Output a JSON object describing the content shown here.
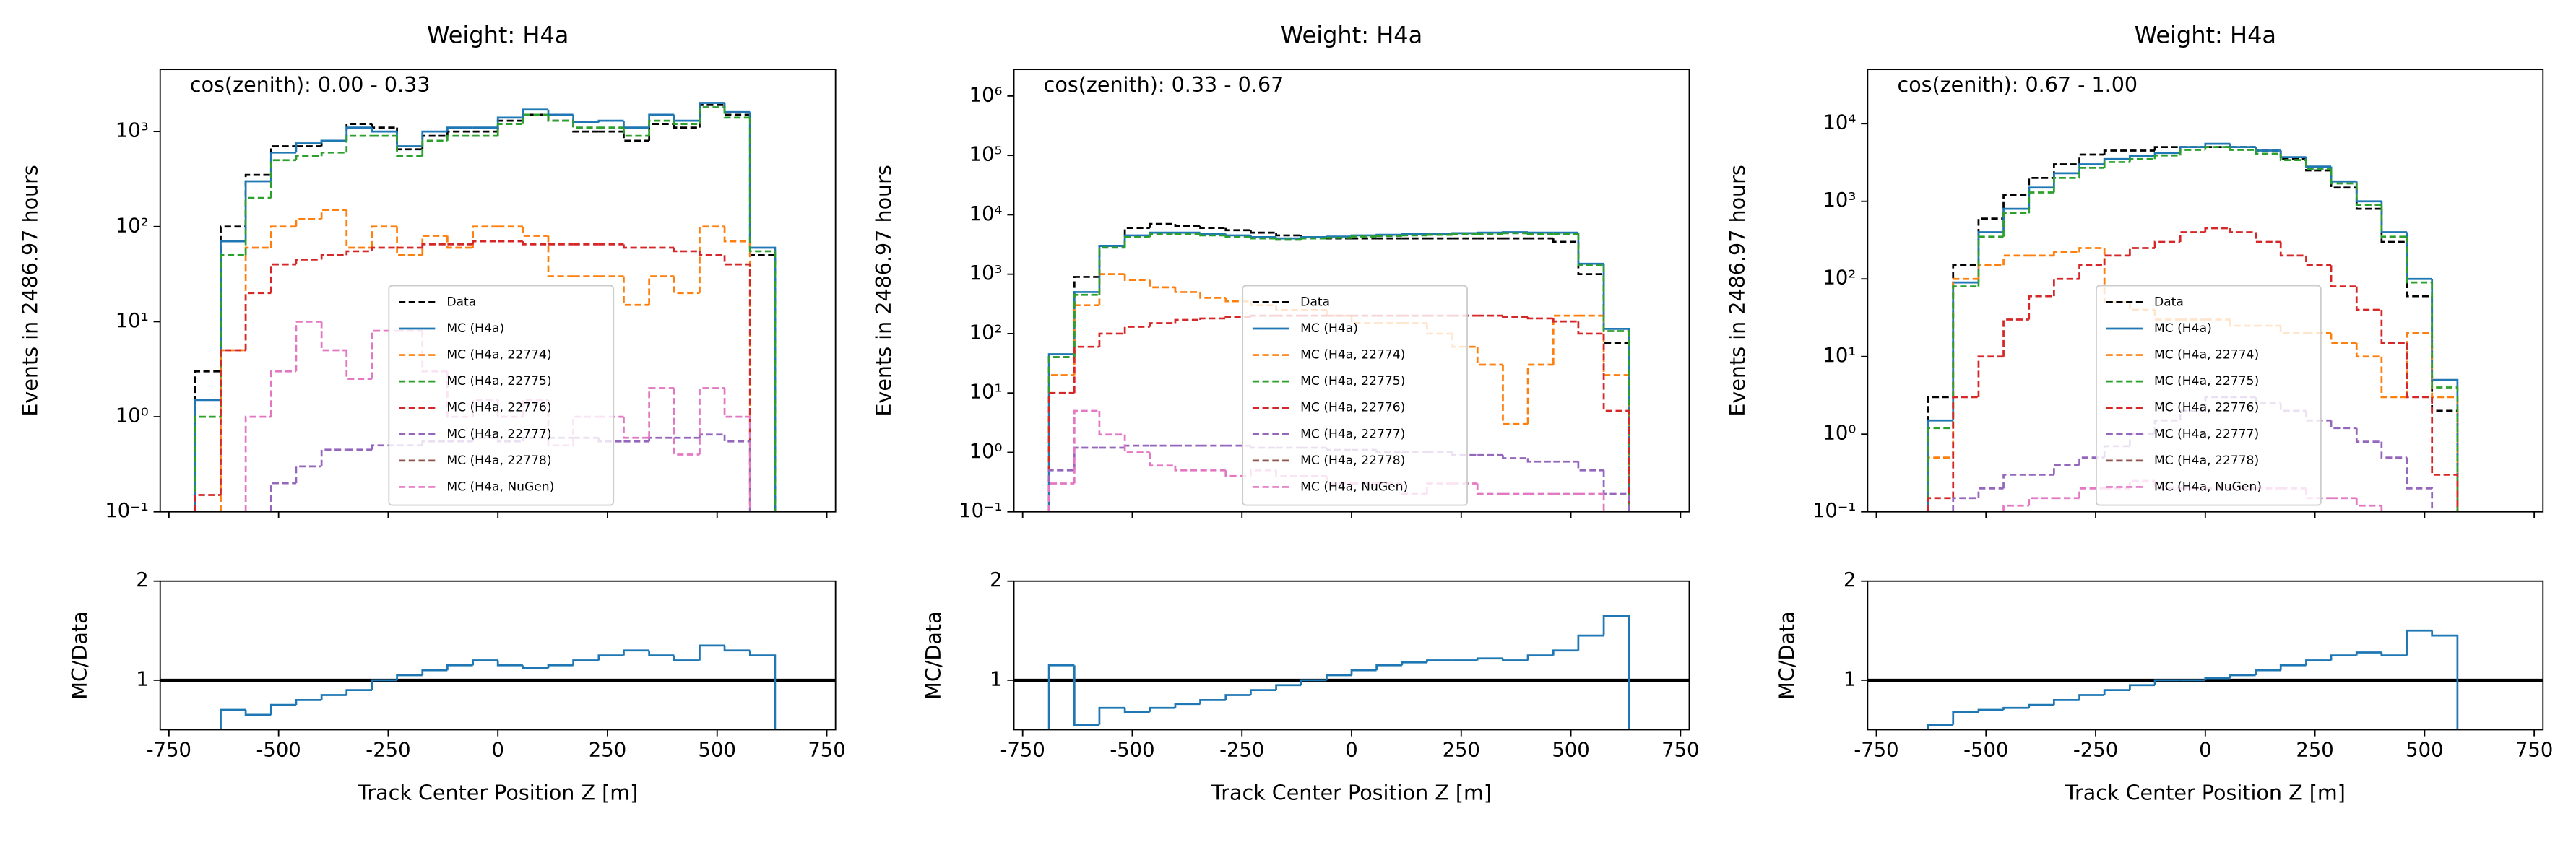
{
  "chart_data": [
    {
      "type": "histogram",
      "title": "Weight: H4a",
      "annotation": "cos(zenith): 0.00 - 0.33",
      "ylabel": "Events in 2486.97 hours",
      "log": true,
      "legend": "lower center",
      "bins": [
        -690,
        -632,
        -575,
        -517,
        -460,
        -402,
        -345,
        -287,
        -230,
        -172,
        -115,
        -57,
        0,
        57,
        115,
        172,
        230,
        287,
        345,
        402,
        460,
        517,
        575,
        632
      ],
      "xlim": [
        -770,
        770
      ],
      "xticks": [
        -750,
        -500,
        -250,
        0,
        250,
        500,
        750
      ],
      "ylim": [
        0.1,
        4500
      ],
      "yticks": [
        {
          "value": 0.1,
          "label": "10⁻¹"
        },
        {
          "value": 1,
          "label": "10⁰"
        },
        {
          "value": 10,
          "label": "10¹"
        },
        {
          "value": 100,
          "label": "10²"
        },
        {
          "value": 1000,
          "label": "10³"
        }
      ],
      "series": [
        {
          "name": "Data",
          "color": "#000000",
          "linestyle": "dashed",
          "values": [
            3,
            100,
            350,
            700,
            700,
            800,
            1200,
            1100,
            650,
            900,
            1000,
            1000,
            1300,
            1500,
            1300,
            1000,
            1000,
            800,
            1200,
            1100,
            1900,
            1500,
            50
          ]
        },
        {
          "name": "MC (H4a)",
          "color": "#1f77b4",
          "linestyle": "solid",
          "values": [
            1.5,
            70,
            300,
            600,
            750,
            800,
            1100,
            1000,
            700,
            1000,
            1100,
            1100,
            1400,
            1700,
            1500,
            1250,
            1300,
            1100,
            1500,
            1300,
            2000,
            1600,
            60
          ]
        },
        {
          "name": "MC (H4a, 22774)",
          "color": "#ff7f0e",
          "linestyle": "dashed",
          "values": [
            null,
            5,
            60,
            100,
            120,
            150,
            60,
            100,
            50,
            80,
            60,
            100,
            100,
            80,
            30,
            30,
            30,
            15,
            30,
            20,
            100,
            70,
            null
          ]
        },
        {
          "name": "MC (H4a, 22775)",
          "color": "#2ca02c",
          "linestyle": "dashed",
          "values": [
            1,
            50,
            200,
            500,
            550,
            600,
            900,
            900,
            550,
            800,
            900,
            900,
            1200,
            1500,
            1300,
            1100,
            1100,
            900,
            1300,
            1200,
            1800,
            1400,
            55
          ]
        },
        {
          "name": "MC (H4a, 22776)",
          "color": "#d62728",
          "linestyle": "dashed",
          "values": [
            0.15,
            5,
            20,
            40,
            45,
            50,
            55,
            60,
            60,
            65,
            65,
            70,
            70,
            65,
            65,
            65,
            65,
            60,
            60,
            55,
            50,
            40,
            null
          ]
        },
        {
          "name": "MC (H4a, 22777)",
          "color": "#9467bd",
          "linestyle": "dashed",
          "values": [
            null,
            null,
            null,
            0.2,
            0.3,
            0.45,
            0.45,
            0.5,
            0.5,
            0.55,
            0.55,
            0.6,
            0.55,
            0.6,
            0.6,
            0.6,
            0.55,
            0.55,
            0.6,
            0.6,
            0.65,
            0.55,
            null
          ]
        },
        {
          "name": "MC (H4a, 22778)",
          "color": "#8c564b",
          "linestyle": "dashed",
          "values": [
            null,
            null,
            null,
            null,
            null,
            null,
            null,
            null,
            null,
            null,
            null,
            null,
            null,
            null,
            null,
            null,
            null,
            null,
            null,
            null,
            null,
            null,
            null
          ]
        },
        {
          "name": "MC (H4a, NuGen)",
          "color": "#e377c2",
          "linestyle": "dashed",
          "values": [
            null,
            null,
            1,
            3,
            10,
            5,
            2.5,
            8,
            8,
            3,
            1,
            1.5,
            1,
            1.5,
            0.5,
            1,
            1,
            0.6,
            2,
            0.4,
            2,
            1,
            null
          ]
        }
      ],
      "ratio": {
        "ylabel": "MC/Data",
        "xlabel": "Track Center Position Z [m]",
        "ylim": [
          0.5,
          2
        ],
        "yticks": [
          1,
          2
        ],
        "ref_line": 1,
        "series": [
          {
            "color": "#1f77b4",
            "values": [
              0.5,
              0.7,
              0.65,
              0.75,
              0.8,
              0.85,
              0.9,
              1.0,
              1.05,
              1.1,
              1.15,
              1.2,
              1.15,
              1.12,
              1.15,
              1.2,
              1.25,
              1.3,
              1.25,
              1.2,
              1.35,
              1.3,
              1.25
            ]
          }
        ]
      }
    },
    {
      "type": "histogram",
      "title": "Weight: H4a",
      "annotation": "cos(zenith): 0.33 - 0.67",
      "ylabel": "Events in 2486.97 hours",
      "log": true,
      "legend": "lower center",
      "bins": [
        -690,
        -632,
        -575,
        -517,
        -460,
        -402,
        -345,
        -287,
        -230,
        -172,
        -115,
        -57,
        0,
        57,
        115,
        172,
        230,
        287,
        345,
        402,
        460,
        517,
        575,
        632
      ],
      "xlim": [
        -770,
        770
      ],
      "xticks": [
        -750,
        -500,
        -250,
        0,
        250,
        500,
        750
      ],
      "ylim": [
        0.1,
        2800000
      ],
      "yticks": [
        {
          "value": 0.1,
          "label": "10⁻¹"
        },
        {
          "value": 1,
          "label": "10⁰"
        },
        {
          "value": 10,
          "label": "10¹"
        },
        {
          "value": 100,
          "label": "10²"
        },
        {
          "value": 1000,
          "label": "10³"
        },
        {
          "value": 10000,
          "label": "10⁴"
        },
        {
          "value": 100000,
          "label": "10⁵"
        },
        {
          "value": 1000000,
          "label": "10⁶"
        }
      ],
      "series": [
        {
          "name": "Data",
          "color": "#000000",
          "linestyle": "dashed",
          "values": [
            40,
            900,
            3000,
            6000,
            7000,
            6500,
            6000,
            5500,
            5000,
            4500,
            4200,
            4000,
            4000,
            4000,
            4000,
            4000,
            4000,
            4000,
            4000,
            4000,
            3500,
            1000,
            70
          ]
        },
        {
          "name": "MC (H4a)",
          "color": "#1f77b4",
          "linestyle": "solid",
          "values": [
            45,
            500,
            3000,
            4500,
            5000,
            5000,
            4800,
            4500,
            4200,
            4000,
            4200,
            4300,
            4500,
            4600,
            4700,
            4800,
            4900,
            5000,
            5100,
            5000,
            5000,
            1500,
            120
          ]
        },
        {
          "name": "MC (H4a, 22774)",
          "color": "#ff7f0e",
          "linestyle": "dashed",
          "values": [
            20,
            300,
            1000,
            800,
            600,
            500,
            400,
            350,
            300,
            250,
            250,
            200,
            150,
            150,
            150,
            100,
            60,
            30,
            3,
            30,
            200,
            200,
            20
          ]
        },
        {
          "name": "MC (H4a, 22775)",
          "color": "#2ca02c",
          "linestyle": "dashed",
          "values": [
            40,
            450,
            2800,
            4200,
            4800,
            4700,
            4500,
            4200,
            4000,
            3800,
            4000,
            4100,
            4300,
            4400,
            4500,
            4600,
            4700,
            4800,
            4900,
            4800,
            4800,
            1400,
            110
          ]
        },
        {
          "name": "MC (H4a, 22776)",
          "color": "#d62728",
          "linestyle": "dashed",
          "values": [
            10,
            60,
            100,
            130,
            150,
            170,
            180,
            190,
            200,
            200,
            200,
            200,
            200,
            200,
            200,
            200,
            200,
            200,
            190,
            180,
            160,
            100,
            5
          ]
        },
        {
          "name": "MC (H4a, 22777)",
          "color": "#9467bd",
          "linestyle": "dashed",
          "values": [
            0.5,
            1.2,
            1.2,
            1.3,
            1.3,
            1.3,
            1.3,
            1.3,
            1.2,
            1.2,
            1.2,
            1.1,
            1.1,
            1,
            1,
            1,
            0.9,
            0.9,
            0.8,
            0.7,
            0.7,
            0.5,
            0.2
          ]
        },
        {
          "name": "MC (H4a, 22778)",
          "color": "#8c564b",
          "linestyle": "dashed",
          "values": [
            null,
            null,
            null,
            null,
            null,
            null,
            null,
            null,
            null,
            null,
            null,
            null,
            null,
            null,
            null,
            null,
            null,
            null,
            null,
            null,
            null,
            null,
            null
          ]
        },
        {
          "name": "MC (H4a, NuGen)",
          "color": "#e377c2",
          "linestyle": "dashed",
          "values": [
            0.3,
            5,
            2,
            1,
            0.6,
            0.5,
            0.5,
            0.4,
            0.5,
            0.4,
            0.4,
            0.3,
            0.3,
            0.3,
            0.2,
            0.3,
            0.3,
            0.2,
            0.2,
            0.2,
            0.2,
            0.2,
            0.1
          ]
        }
      ],
      "ratio": {
        "ylabel": "MC/Data",
        "xlabel": "Track Center Position Z [m]",
        "ylim": [
          0.5,
          2
        ],
        "yticks": [
          1,
          2
        ],
        "ref_line": 1,
        "series": [
          {
            "color": "#1f77b4",
            "values": [
              1.15,
              0.55,
              0.72,
              0.68,
              0.72,
              0.76,
              0.8,
              0.85,
              0.9,
              0.95,
              1.0,
              1.05,
              1.1,
              1.15,
              1.18,
              1.2,
              1.2,
              1.22,
              1.2,
              1.25,
              1.3,
              1.45,
              1.65
            ]
          }
        ]
      }
    },
    {
      "type": "histogram",
      "title": "Weight: H4a",
      "annotation": "cos(zenith): 0.67 - 1.00",
      "ylabel": "Events in 2486.97 hours",
      "log": true,
      "legend": "lower center",
      "bins": [
        -632,
        -575,
        -517,
        -460,
        -402,
        -345,
        -287,
        -230,
        -172,
        -115,
        -57,
        0,
        57,
        115,
        172,
        230,
        287,
        345,
        402,
        460,
        517,
        575
      ],
      "xlim": [
        -770,
        770
      ],
      "xticks": [
        -750,
        -500,
        -250,
        0,
        250,
        500,
        750
      ],
      "ylim": [
        0.1,
        50000
      ],
      "yticks": [
        {
          "value": 0.1,
          "label": "10⁻¹"
        },
        {
          "value": 1,
          "label": "10⁰"
        },
        {
          "value": 10,
          "label": "10¹"
        },
        {
          "value": 100,
          "label": "10²"
        },
        {
          "value": 1000,
          "label": "10³"
        },
        {
          "value": 10000,
          "label": "10⁴"
        }
      ],
      "series": [
        {
          "name": "Data",
          "color": "#000000",
          "linestyle": "dashed",
          "values": [
            3,
            150,
            600,
            1200,
            2000,
            3000,
            4000,
            4500,
            4500,
            5000,
            5000,
            5000,
            5000,
            4500,
            3500,
            2500,
            1500,
            800,
            300,
            60,
            2
          ]
        },
        {
          "name": "MC (H4a)",
          "color": "#1f77b4",
          "linestyle": "solid",
          "values": [
            1.5,
            90,
            400,
            800,
            1500,
            2300,
            3000,
            3500,
            3800,
            4200,
            5000,
            5500,
            5000,
            4500,
            3700,
            2800,
            1800,
            1000,
            400,
            100,
            5
          ]
        },
        {
          "name": "MC (H4a, 22774)",
          "color": "#ff7f0e",
          "linestyle": "dashed",
          "values": [
            0.5,
            100,
            150,
            200,
            200,
            220,
            250,
            50,
            40,
            30,
            30,
            30,
            25,
            25,
            20,
            20,
            15,
            10,
            3,
            20,
            3
          ]
        },
        {
          "name": "MC (H4a, 22775)",
          "color": "#2ca02c",
          "linestyle": "dashed",
          "values": [
            1.2,
            80,
            350,
            700,
            1300,
            2000,
            2700,
            3200,
            3500,
            3900,
            4600,
            5000,
            4600,
            4100,
            3400,
            2600,
            1700,
            900,
            350,
            90,
            4
          ]
        },
        {
          "name": "MC (H4a, 22776)",
          "color": "#d62728",
          "linestyle": "dashed",
          "values": [
            0.15,
            3,
            10,
            30,
            60,
            100,
            150,
            200,
            250,
            300,
            400,
            450,
            400,
            300,
            200,
            150,
            80,
            40,
            15,
            3,
            0.3
          ]
        },
        {
          "name": "MC (H4a, 22777)",
          "color": "#9467bd",
          "linestyle": "dashed",
          "values": [
            null,
            0.15,
            0.2,
            0.3,
            0.3,
            0.4,
            0.5,
            0.7,
            1,
            1.5,
            2,
            3,
            3,
            2.5,
            2,
            1.5,
            1.2,
            0.8,
            0.5,
            0.2,
            null
          ]
        },
        {
          "name": "MC (H4a, 22778)",
          "color": "#8c564b",
          "linestyle": "dashed",
          "values": [
            null,
            null,
            null,
            null,
            null,
            null,
            null,
            null,
            null,
            null,
            null,
            null,
            null,
            null,
            null,
            null,
            null,
            null,
            null,
            null,
            null
          ]
        },
        {
          "name": "MC (H4a, NuGen)",
          "color": "#e377c2",
          "linestyle": "dashed",
          "values": [
            null,
            null,
            0.1,
            0.12,
            0.15,
            0.15,
            0.2,
            0.2,
            0.25,
            0.2,
            0.2,
            0.2,
            0.2,
            0.2,
            0.2,
            0.15,
            0.15,
            0.12,
            0.1,
            null,
            null
          ]
        }
      ],
      "ratio": {
        "ylabel": "MC/Data",
        "xlabel": "Track Center Position Z [m]",
        "ylim": [
          0.5,
          2
        ],
        "yticks": [
          1,
          2
        ],
        "ref_line": 1,
        "series": [
          {
            "color": "#1f77b4",
            "values": [
              0.55,
              0.68,
              0.7,
              0.72,
              0.75,
              0.8,
              0.85,
              0.9,
              0.95,
              1.0,
              1.0,
              1.02,
              1.05,
              1.1,
              1.15,
              1.2,
              1.25,
              1.28,
              1.25,
              1.5,
              1.45
            ]
          }
        ]
      }
    }
  ]
}
